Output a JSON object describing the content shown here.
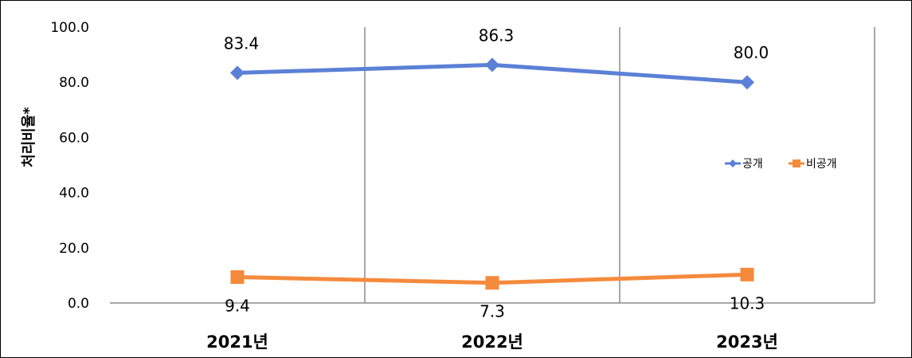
{
  "chart_data": {
    "type": "line",
    "categories": [
      "2021년",
      "2022년",
      "2023년"
    ],
    "ylabel": "처리비율*",
    "xlabel": "",
    "title": "",
    "ylim": [
      0,
      100
    ],
    "yticks": [
      "0.0",
      "20.0",
      "40.0",
      "60.0",
      "80.0",
      "100.0"
    ],
    "grid": false,
    "legend_position": "right",
    "series": [
      {
        "name": "공개",
        "values": [
          83.4,
          86.3,
          80.0
        ],
        "labels": [
          "83.4",
          "86.3",
          "80.0"
        ],
        "color": "#5B80D6",
        "marker": "diamond"
      },
      {
        "name": "비공개",
        "values": [
          9.4,
          7.3,
          10.3
        ],
        "labels": [
          "9.4",
          "7.3",
          "10.3"
        ],
        "color": "#F58A3C",
        "marker": "square"
      }
    ]
  }
}
